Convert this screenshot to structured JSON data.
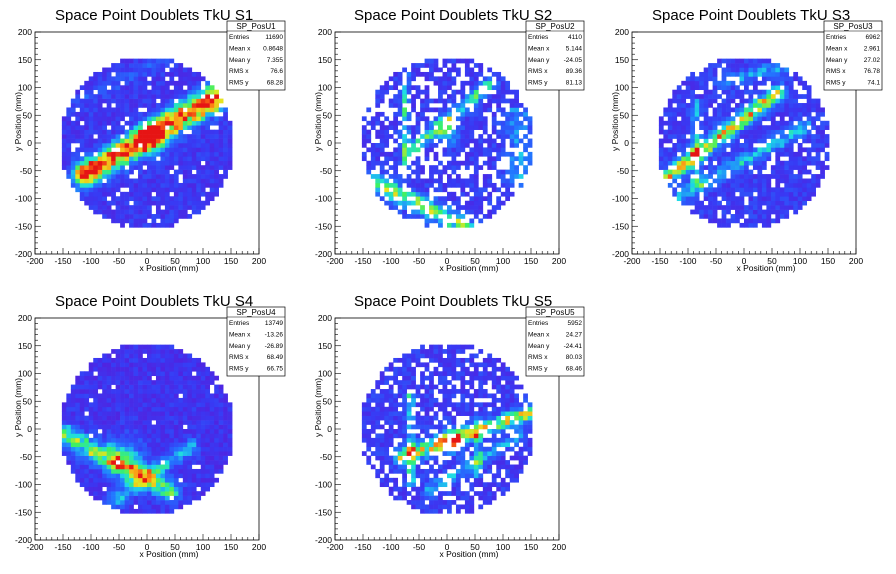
{
  "chart_data": [
    {
      "type": "heatmap",
      "title": "Space Point Doublets TkU S1",
      "xlabel": "x Position (mm)",
      "ylabel": "y Position (mm)",
      "xlim": [
        -200,
        200
      ],
      "ylim": [
        -200,
        200
      ],
      "x_ticks": [
        "-200",
        "-150",
        "-100",
        "-50",
        "0",
        "50",
        "100",
        "150",
        "200"
      ],
      "y_ticks": [
        "-200",
        "-150",
        "-100",
        "-50",
        "0",
        "50",
        "100",
        "150",
        "200"
      ],
      "stats": {
        "name": "SP_PosU1",
        "rows": [
          {
            "label": "Entries",
            "value": "11690"
          },
          {
            "label": "Mean x",
            "value": "0.8648"
          },
          {
            "label": "Mean y",
            "value": "7.355"
          },
          {
            "label": "RMS x",
            "value": "76.6"
          },
          {
            "label": "RMS y",
            "value": "68.28"
          }
        ]
      },
      "seed": 11,
      "sparsity": 0.06,
      "base_level": 0.1,
      "features": [
        {
          "kind": "band",
          "x1": -110,
          "y1": -60,
          "x2": 160,
          "y2": 100,
          "width": 15,
          "amp": 0.75
        },
        {
          "kind": "band",
          "x1": -120,
          "y1": -50,
          "x2": 130,
          "y2": 110,
          "width": 10,
          "amp": 0.3
        },
        {
          "kind": "band",
          "x1": -150,
          "y1": 60,
          "x2": 30,
          "y2": 150,
          "width": 8,
          "amp": 0.12
        },
        {
          "kind": "spot",
          "x": 10,
          "y": 10,
          "r": 20,
          "amp": 0.35
        }
      ]
    },
    {
      "type": "heatmap",
      "title": "Space Point Doublets TkU S2",
      "xlabel": "x Position (mm)",
      "ylabel": "y Position (mm)",
      "xlim": [
        -200,
        200
      ],
      "ylim": [
        -200,
        200
      ],
      "x_ticks": [
        "-200",
        "-150",
        "-100",
        "-50",
        "0",
        "50",
        "100",
        "150",
        "200"
      ],
      "y_ticks": [
        "-200",
        "-150",
        "-100",
        "-50",
        "0",
        "50",
        "100",
        "150",
        "200"
      ],
      "stats": {
        "name": "SP_PosU2",
        "rows": [
          {
            "label": "Entries",
            "value": "4110"
          },
          {
            "label": "Mean x",
            "value": "5.144"
          },
          {
            "label": "Mean y",
            "value": "-24.05"
          },
          {
            "label": "RMS x",
            "value": "89.36"
          },
          {
            "label": "RMS y",
            "value": "81.13"
          }
        ]
      },
      "seed": 22,
      "sparsity": 0.32,
      "base_level": 0.12,
      "features": [
        {
          "kind": "band",
          "x1": -130,
          "y1": -70,
          "x2": 30,
          "y2": -150,
          "width": 12,
          "amp": 0.55
        },
        {
          "kind": "band",
          "x1": -60,
          "y1": -10,
          "x2": 80,
          "y2": 110,
          "width": 8,
          "amp": 0.45
        },
        {
          "kind": "vline",
          "x": -75,
          "y1": -60,
          "y2": 130,
          "width": 5,
          "amp": 0.45
        },
        {
          "kind": "vline",
          "x": 130,
          "y1": -80,
          "y2": 60,
          "width": 18,
          "amp": 0.25
        },
        {
          "kind": "spot",
          "x": 0,
          "y": 20,
          "r": 15,
          "amp": 0.4
        }
      ]
    },
    {
      "type": "heatmap",
      "title": "Space Point Doublets TkU S3",
      "xlabel": "x Position (mm)",
      "ylabel": "y Position (mm)",
      "xlim": [
        -200,
        200
      ],
      "ylim": [
        -200,
        200
      ],
      "x_ticks": [
        "-200",
        "-150",
        "-100",
        "-50",
        "0",
        "50",
        "100",
        "150",
        "200"
      ],
      "y_ticks": [
        "-200",
        "-150",
        "-100",
        "-50",
        "0",
        "50",
        "100",
        "150",
        "200"
      ],
      "stats": {
        "name": "SP_PosU3",
        "rows": [
          {
            "label": "Entries",
            "value": "6962"
          },
          {
            "label": "Mean x",
            "value": "2.961"
          },
          {
            "label": "Mean y",
            "value": "27.02"
          },
          {
            "label": "RMS x",
            "value": "76.78"
          },
          {
            "label": "RMS y",
            "value": "74.1"
          }
        ]
      },
      "seed": 33,
      "sparsity": 0.18,
      "base_level": 0.12,
      "features": [
        {
          "kind": "band",
          "x1": -150,
          "y1": -70,
          "x2": 60,
          "y2": 90,
          "width": 10,
          "amp": 0.65
        },
        {
          "kind": "band",
          "x1": -120,
          "y1": -100,
          "x2": 110,
          "y2": 30,
          "width": 9,
          "amp": 0.35
        },
        {
          "kind": "band",
          "x1": -40,
          "y1": 110,
          "x2": 120,
          "y2": 150,
          "width": 8,
          "amp": 0.3
        },
        {
          "kind": "vline",
          "x": -85,
          "y1": -80,
          "y2": 80,
          "width": 6,
          "amp": 0.35
        }
      ]
    },
    {
      "type": "heatmap",
      "title": "Space Point Doublets TkU S4",
      "xlabel": "x Position (mm)",
      "ylabel": "y Position (mm)",
      "xlim": [
        -200,
        200
      ],
      "ylim": [
        -200,
        200
      ],
      "x_ticks": [
        "-200",
        "-150",
        "-100",
        "-50",
        "0",
        "50",
        "100",
        "150",
        "200"
      ],
      "y_ticks": [
        "-200",
        "-150",
        "-100",
        "-50",
        "0",
        "50",
        "100",
        "150",
        "200"
      ],
      "stats": {
        "name": "SP_PosU4",
        "rows": [
          {
            "label": "Entries",
            "value": "13749"
          },
          {
            "label": "Mean x",
            "value": "-13.26"
          },
          {
            "label": "Mean y",
            "value": "-26.89"
          },
          {
            "label": "RMS x",
            "value": "68.49"
          },
          {
            "label": "RMS y",
            "value": "66.75"
          }
        ]
      },
      "seed": 44,
      "sparsity": 0.03,
      "base_level": 0.08,
      "features": [
        {
          "kind": "band",
          "x1": -150,
          "y1": -10,
          "x2": 40,
          "y2": -110,
          "width": 14,
          "amp": 0.55
        },
        {
          "kind": "band",
          "x1": -60,
          "y1": -130,
          "x2": 80,
          "y2": -30,
          "width": 10,
          "amp": 0.35
        },
        {
          "kind": "spot",
          "x": -40,
          "y": -50,
          "r": 25,
          "amp": 0.35
        }
      ]
    },
    {
      "type": "heatmap",
      "title": "Space Point Doublets TkU S5",
      "xlabel": "x Position (mm)",
      "ylabel": "y Position (mm)",
      "xlim": [
        -200,
        200
      ],
      "ylim": [
        -200,
        200
      ],
      "x_ticks": [
        "-200",
        "-150",
        "-100",
        "-50",
        "0",
        "50",
        "100",
        "150",
        "200"
      ],
      "y_ticks": [
        "-200",
        "-150",
        "-100",
        "-50",
        "0",
        "50",
        "100",
        "150",
        "200"
      ],
      "stats": {
        "name": "SP_PosU5",
        "rows": [
          {
            "label": "Entries",
            "value": "5952"
          },
          {
            "label": "Mean x",
            "value": "24.27"
          },
          {
            "label": "Mean y",
            "value": "-24.41"
          },
          {
            "label": "RMS x",
            "value": "80.03"
          },
          {
            "label": "RMS y",
            "value": "68.46"
          }
        ]
      },
      "seed": 55,
      "sparsity": 0.25,
      "base_level": 0.12,
      "features": [
        {
          "kind": "band",
          "x1": -80,
          "y1": -50,
          "x2": 150,
          "y2": 30,
          "width": 10,
          "amp": 0.6
        },
        {
          "kind": "band",
          "x1": -30,
          "y1": -110,
          "x2": 130,
          "y2": -10,
          "width": 8,
          "amp": 0.3
        },
        {
          "kind": "vline",
          "x": -65,
          "y1": -100,
          "y2": 60,
          "width": 6,
          "amp": 0.35
        },
        {
          "kind": "vline",
          "x": 55,
          "y1": -90,
          "y2": 20,
          "width": 5,
          "amp": 0.3
        },
        {
          "kind": "spot",
          "x": 10,
          "y": -20,
          "r": 15,
          "amp": 0.45
        }
      ]
    }
  ]
}
